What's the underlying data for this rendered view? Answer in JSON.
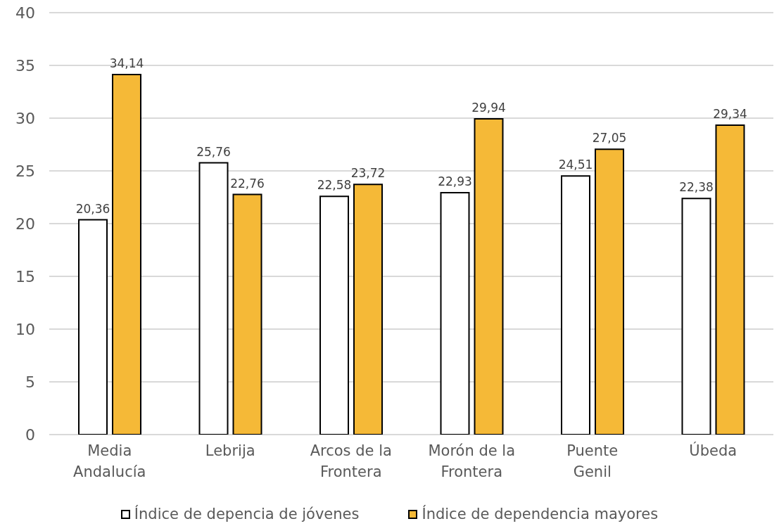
{
  "chart_data": {
    "type": "bar",
    "categories": [
      "Media Andalucía",
      "Lebrija",
      "Arcos de la Frontera",
      "Morón de la Frontera",
      "Puente Genil",
      "Úbeda"
    ],
    "series": [
      {
        "name": "Índice de depencia de jóvenes",
        "color": "#ffffff",
        "values": [
          20.36,
          25.76,
          22.58,
          22.93,
          24.51,
          22.38
        ],
        "value_labels": [
          "20,36",
          "25,76",
          "22,58",
          "22,93",
          "24,51",
          "22,38"
        ]
      },
      {
        "name": "Índice de dependencia mayores",
        "color": "#f5b937",
        "values": [
          34.14,
          22.76,
          23.72,
          29.94,
          27.05,
          29.34
        ],
        "value_labels": [
          "34,14",
          "22,76",
          "23,72",
          "29,94",
          "27,05",
          "29,34"
        ]
      }
    ],
    "ylim": [
      0,
      40
    ],
    "yticks": [
      0,
      5,
      10,
      15,
      20,
      25,
      30,
      35,
      40
    ],
    "grid": "y",
    "legend": "bottom"
  }
}
